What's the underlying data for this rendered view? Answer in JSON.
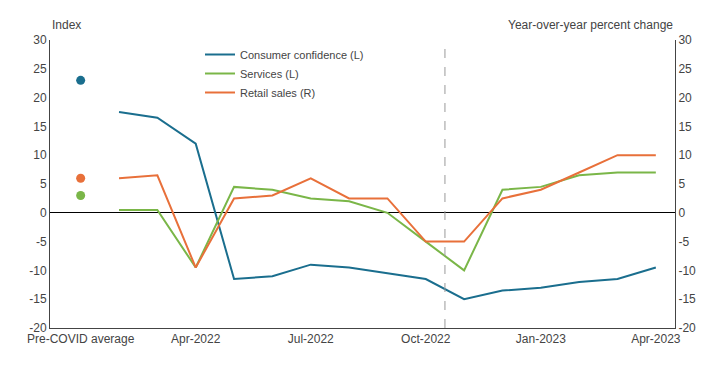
{
  "chart_data": {
    "type": "line",
    "ylabel": "Index",
    "y2label": "Year-over-year percent change",
    "categories": [
      "Pre-COVID average",
      null,
      null,
      "Apr-2022",
      null,
      null,
      "Jul-2022",
      null,
      null,
      "Oct-2022",
      null,
      null,
      "Jan-2023",
      null,
      null,
      "Apr-2023"
    ],
    "series": [
      {
        "name": "Consumer confidence (L)",
        "color": "#1a6e8e",
        "axis": "y",
        "pre_covid_value": 23,
        "values": [
          null,
          17.5,
          16.5,
          12.0,
          -11.5,
          -11.0,
          -9.0,
          -9.5,
          -10.5,
          -11.5,
          -15.0,
          -13.5,
          -13.0,
          -12.0,
          -11.5,
          -9.5
        ]
      },
      {
        "name": "Services (L)",
        "color": "#7ab648",
        "axis": "y",
        "pre_covid_value": 3,
        "values": [
          null,
          0.5,
          0.5,
          -9.5,
          4.5,
          4.0,
          2.5,
          2.0,
          0.0,
          -5.0,
          -10.0,
          4.0,
          4.5,
          6.5,
          7.0,
          7.0
        ]
      },
      {
        "name": "Retail sales (R)",
        "color": "#e8703a",
        "axis": "y2",
        "pre_covid_value": 6,
        "values": [
          null,
          6.0,
          6.5,
          -9.5,
          2.5,
          3.0,
          6.0,
          2.5,
          2.5,
          -5.0,
          -5.0,
          2.5,
          4.0,
          7.0,
          10.0,
          10.0
        ]
      }
    ],
    "vline_at": 9.5,
    "ylim": [
      -20,
      30
    ],
    "yticks": [
      -20,
      -15,
      -10,
      -5,
      0,
      5,
      10,
      15,
      20,
      25,
      30
    ],
    "y2lim": [
      -20,
      30
    ],
    "y2ticks": [
      -20,
      -15,
      -10,
      -5,
      0,
      5,
      10,
      15,
      20,
      25,
      30
    ],
    "grid": false,
    "legend": "upper left"
  }
}
